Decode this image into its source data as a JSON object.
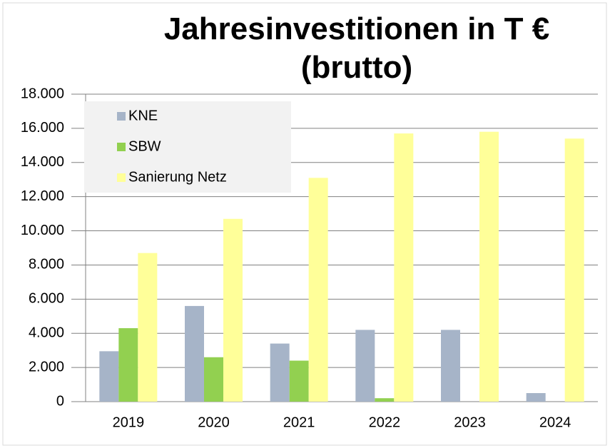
{
  "chart_data": {
    "type": "bar",
    "title": "Jahresinvestitionen in T € (brutto)",
    "categories": [
      "2019",
      "2020",
      "2021",
      "2022",
      "2023",
      "2024"
    ],
    "series": [
      {
        "name": "KNE",
        "color": "#a6b4c8",
        "values": [
          2950,
          5600,
          3400,
          4200,
          4200,
          500
        ]
      },
      {
        "name": "SBW",
        "color": "#92d050",
        "values": [
          4300,
          2600,
          2400,
          200,
          0,
          0
        ]
      },
      {
        "name": "Sanierung Netz",
        "color": "#ffff99",
        "values": [
          8700,
          10700,
          13100,
          15700,
          15800,
          15400
        ]
      }
    ],
    "ylim": [
      0,
      18000
    ],
    "yticks": [
      0,
      {
        "value": 2000,
        "label": "2.000"
      },
      {
        "value": 4000,
        "label": "4.000"
      },
      {
        "value": 6000,
        "label": "6.000"
      },
      {
        "value": 8000,
        "label": "8.000"
      },
      {
        "value": 10000,
        "label": "10.000"
      },
      {
        "value": 12000,
        "label": "12.000"
      },
      {
        "value": 14000,
        "label": "14.000"
      },
      {
        "value": 16000,
        "label": "16.000"
      },
      {
        "value": 18000,
        "label": "18.000"
      }
    ],
    "grid": true,
    "legend": "upper left"
  }
}
